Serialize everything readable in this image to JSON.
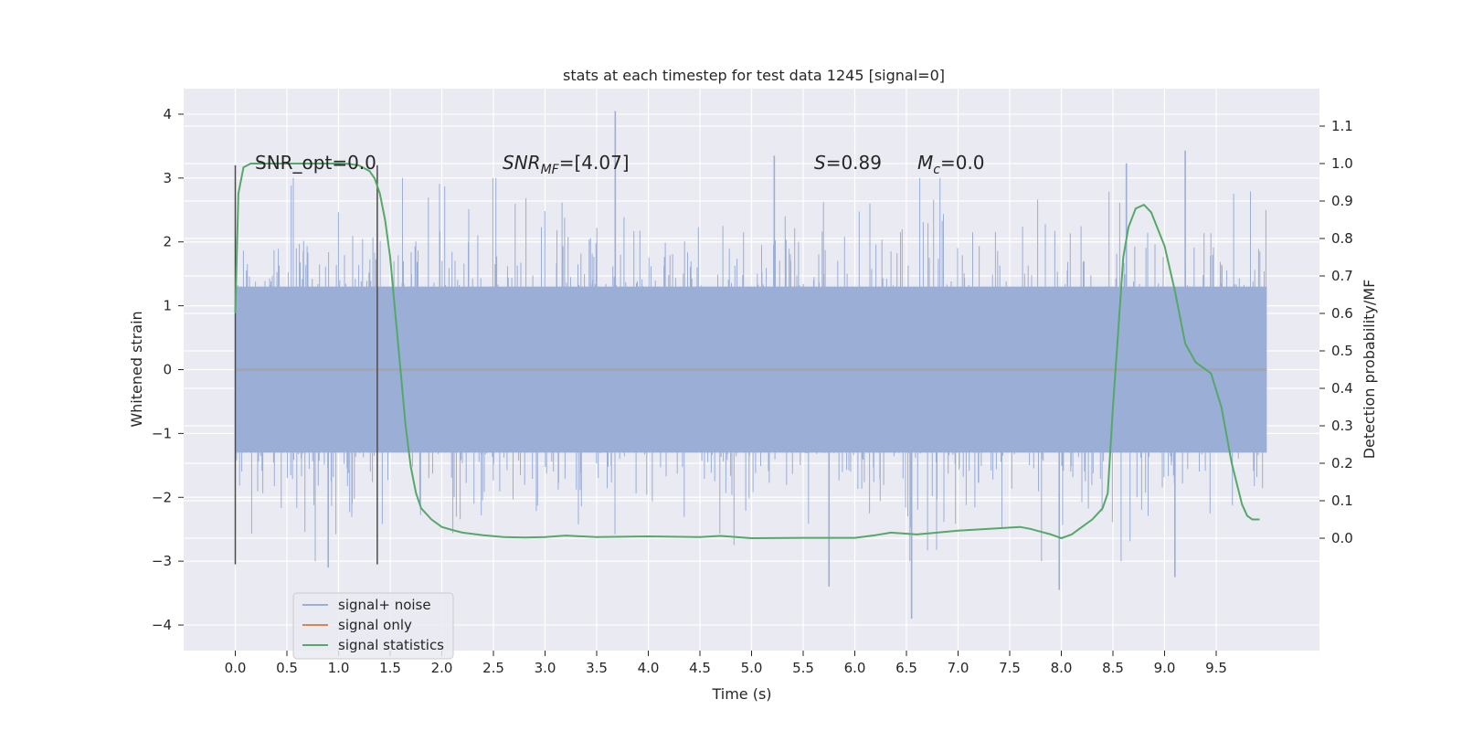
{
  "chart_data": {
    "type": "line",
    "title": "stats at each timestep for test data 1245 [signal=0]",
    "xlabel": "Time (s)",
    "ylabel": "Whitened strain",
    "y2label": "Detection probability/MF",
    "xlim": [
      -0.5,
      10.5
    ],
    "ylim": [
      -4.4,
      4.4
    ],
    "y2lim": [
      -0.3,
      1.2
    ],
    "x_ticks": [
      "0.0",
      "0.5",
      "1.0",
      "1.5",
      "2.0",
      "2.5",
      "3.0",
      "3.5",
      "4.0",
      "4.5",
      "5.0",
      "5.5",
      "6.0",
      "6.5",
      "7.0",
      "7.5",
      "8.0",
      "8.5",
      "9.0",
      "9.5"
    ],
    "y_ticks": [
      "4",
      "3",
      "2",
      "1",
      "0",
      "−1",
      "−2",
      "−3",
      "−4"
    ],
    "y2_ticks": [
      "1.1",
      "1.0",
      "0.9",
      "0.8",
      "0.7",
      "0.6",
      "0.5",
      "0.4",
      "0.3",
      "0.2",
      "0.1",
      "0.0"
    ],
    "grid": true,
    "legend_position": "lower-left",
    "annotations": {
      "snr_opt": "SNR_opt=0.0",
      "snr_mf_base": "SNR",
      "snr_mf_sub": "MF",
      "snr_mf_value": "=[4.07]",
      "s_var": "S",
      "s_value": "=0.89",
      "mc_var": "M",
      "mc_sub": "c",
      "mc_value": "=0.0"
    },
    "vertical_markers": [
      0.0,
      1.375
    ],
    "series": [
      {
        "name": "signal+ noise",
        "color": "#9aaed6",
        "x_range": [
          0.0,
          9.99
        ],
        "envelope_upper": 1.3,
        "envelope_lower": -1.3,
        "max": 4.05,
        "min": -3.9,
        "spikes": [
          {
            "x": 3.68,
            "y": 4.05
          },
          {
            "x": 9.2,
            "y": 3.43
          },
          {
            "x": 8.63,
            "y": 3.23
          },
          {
            "x": 5.22,
            "y": 3.35
          },
          {
            "x": 6.55,
            "y": -3.9
          },
          {
            "x": 9.1,
            "y": -3.25
          },
          {
            "x": 5.75,
            "y": -3.4
          },
          {
            "x": 7.98,
            "y": -3.45
          },
          {
            "x": 0.9,
            "y": -3.1
          }
        ]
      },
      {
        "name": "signal only",
        "color": "#dd8452",
        "x": [
          0.0,
          9.99
        ],
        "y": [
          0.0,
          0.0
        ]
      },
      {
        "name": "signal statistics",
        "color": "#55a868",
        "axis": "right",
        "x": [
          0.0,
          0.03,
          0.08,
          0.15,
          0.25,
          0.4,
          0.6,
          0.8,
          1.0,
          1.1,
          1.2,
          1.3,
          1.35,
          1.4,
          1.45,
          1.5,
          1.55,
          1.6,
          1.65,
          1.7,
          1.75,
          1.8,
          1.9,
          2.0,
          2.1,
          2.2,
          2.4,
          2.6,
          2.8,
          3.0,
          3.2,
          3.5,
          4.0,
          4.5,
          4.7,
          5.0,
          5.5,
          6.0,
          6.2,
          6.35,
          6.6,
          7.0,
          7.3,
          7.6,
          7.7,
          7.9,
          8.0,
          8.1,
          8.2,
          8.3,
          8.4,
          8.45,
          8.5,
          8.55,
          8.6,
          8.65,
          8.72,
          8.8,
          8.87,
          9.0,
          9.1,
          9.2,
          9.3,
          9.35,
          9.45,
          9.55,
          9.65,
          9.75,
          9.8,
          9.85,
          9.92
        ],
        "y": [
          0.6,
          0.92,
          0.99,
          1.0,
          1.0,
          1.0,
          1.0,
          1.0,
          1.0,
          0.999,
          0.995,
          0.98,
          0.96,
          0.92,
          0.85,
          0.75,
          0.6,
          0.45,
          0.3,
          0.19,
          0.12,
          0.08,
          0.05,
          0.03,
          0.022,
          0.015,
          0.008,
          0.003,
          0.002,
          0.003,
          0.007,
          0.003,
          0.005,
          0.003,
          0.006,
          0.0,
          0.001,
          0.001,
          0.008,
          0.015,
          0.01,
          0.02,
          0.025,
          0.03,
          0.025,
          0.01,
          0.0,
          0.01,
          0.03,
          0.05,
          0.08,
          0.12,
          0.35,
          0.55,
          0.75,
          0.83,
          0.88,
          0.89,
          0.87,
          0.78,
          0.66,
          0.52,
          0.47,
          0.46,
          0.44,
          0.35,
          0.2,
          0.09,
          0.06,
          0.05,
          0.05
        ]
      }
    ]
  }
}
